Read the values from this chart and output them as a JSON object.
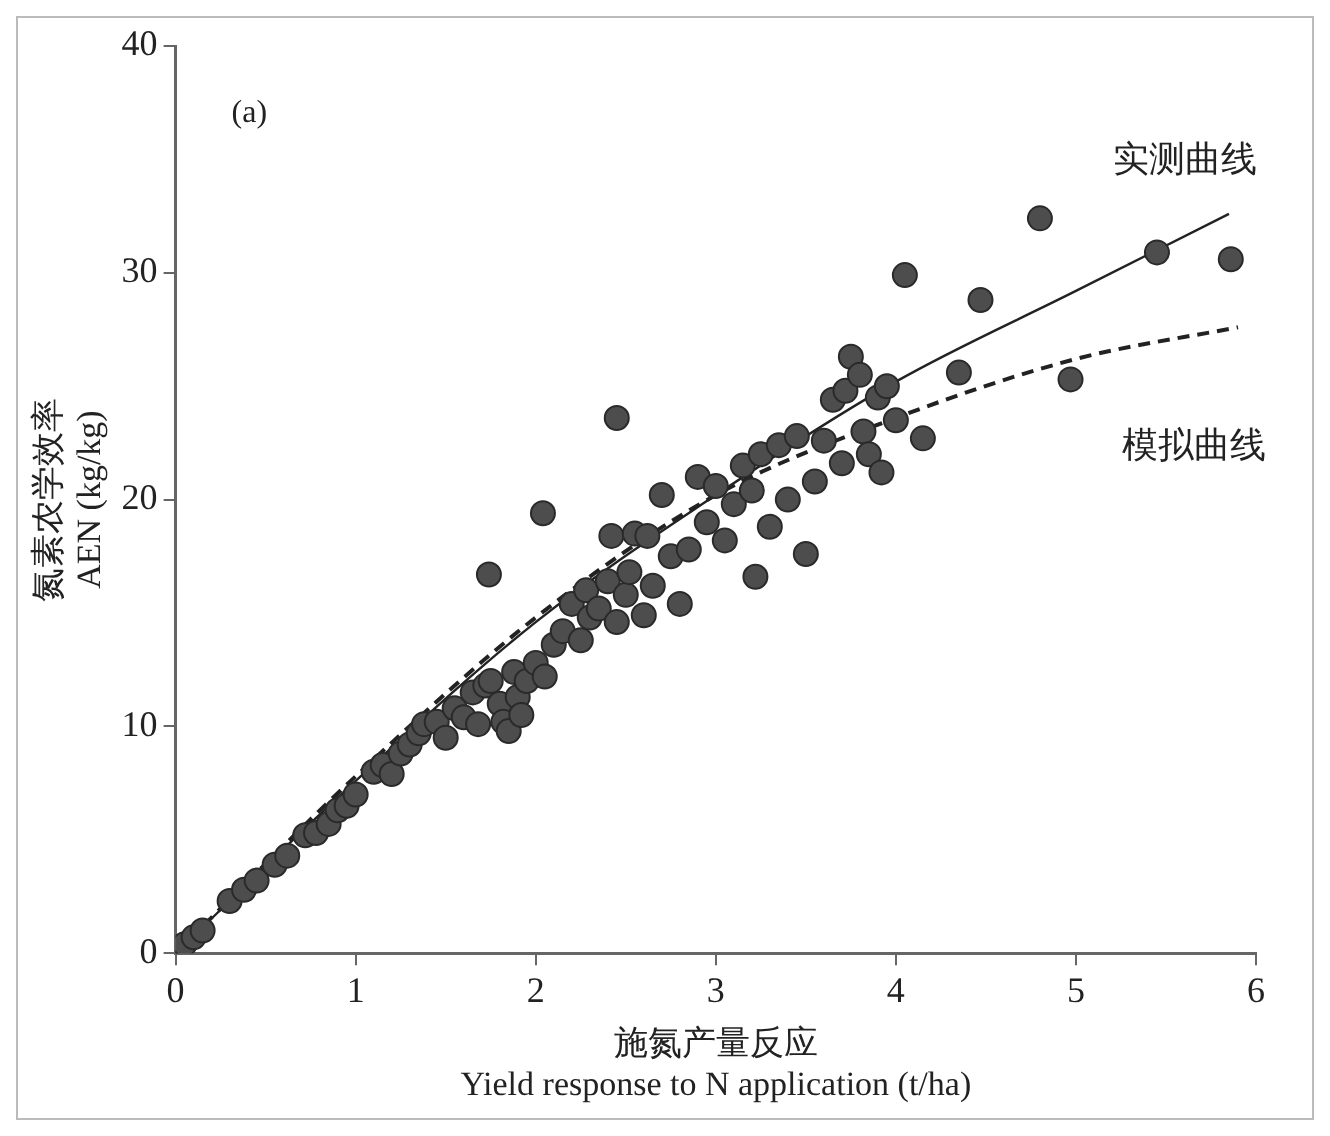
{
  "chart_data": {
    "type": "scatter",
    "xlabel": "施氮产量反应\nYield response to N application (t/ha)",
    "ylabel": "氮素农学效率\nAEN (kg/kg)",
    "xlim": [
      0,
      6
    ],
    "xticks": [
      0,
      1,
      2,
      3,
      4,
      5,
      6
    ],
    "ylim": [
      0,
      40
    ],
    "yticks": [
      0,
      10,
      20,
      30,
      40
    ],
    "grid": false,
    "legend": false,
    "marker": "circle",
    "annotations": [
      "(a)"
    ],
    "series": [
      {
        "type": "scatter",
        "color": "#4d4d4d",
        "x": [
          0.05,
          0.1,
          0.15,
          0.3,
          0.38,
          0.45,
          0.55,
          0.62,
          0.72,
          0.78,
          0.85,
          0.9,
          0.95,
          1.0,
          1.1,
          1.15,
          1.2,
          1.25,
          1.3,
          1.35,
          1.38,
          1.45,
          1.5,
          1.55,
          1.6,
          1.65,
          1.68,
          1.72,
          1.75,
          1.8,
          1.82,
          1.85,
          1.88,
          1.9,
          1.92,
          1.95,
          2.0,
          2.05,
          2.1,
          2.15,
          2.2,
          2.25,
          2.28,
          2.3,
          2.35,
          2.4,
          2.42,
          2.45,
          2.5,
          2.52,
          2.55,
          2.6,
          2.62,
          2.65,
          2.7,
          2.75,
          2.8,
          2.85,
          2.9,
          2.95,
          3.0,
          3.05,
          3.1,
          3.15,
          3.2,
          3.22,
          3.25,
          3.3,
          3.35,
          3.4,
          3.45,
          3.5,
          3.55,
          3.6,
          3.65,
          3.7,
          3.72,
          3.75,
          3.8,
          3.82,
          3.85,
          3.9,
          3.92,
          3.95,
          4.0,
          4.05,
          4.15,
          4.35,
          4.47,
          4.8,
          4.97,
          5.45,
          5.86,
          1.74,
          2.04,
          2.45
        ],
        "values": [
          0.4,
          0.7,
          1.0,
          2.3,
          2.8,
          3.2,
          3.9,
          4.3,
          5.2,
          5.3,
          5.7,
          6.3,
          6.5,
          7.0,
          8.0,
          8.3,
          7.9,
          8.8,
          9.2,
          9.7,
          10.1,
          10.2,
          9.5,
          10.8,
          10.4,
          11.5,
          10.1,
          11.8,
          12.0,
          11.0,
          10.2,
          9.8,
          12.4,
          11.3,
          10.5,
          12.0,
          12.8,
          12.2,
          13.6,
          14.2,
          15.4,
          13.8,
          16.0,
          14.8,
          15.2,
          16.4,
          18.4,
          14.6,
          15.8,
          16.8,
          18.5,
          14.9,
          18.4,
          16.2,
          20.2,
          17.5,
          15.4,
          17.8,
          21.0,
          19.0,
          20.6,
          18.2,
          19.8,
          21.5,
          20.4,
          16.6,
          22.0,
          18.8,
          22.4,
          20.0,
          22.8,
          17.6,
          20.8,
          22.6,
          24.4,
          21.6,
          24.8,
          26.3,
          25.5,
          23.0,
          22.0,
          24.5,
          21.2,
          25.0,
          23.5,
          29.9,
          22.7,
          25.6,
          28.8,
          32.4,
          25.3,
          30.9,
          30.6,
          16.7,
          19.4,
          23.6
        ]
      },
      {
        "type": "line",
        "name": "实测曲线",
        "color": "#222222",
        "line_style": "solid",
        "marker": "none",
        "x": [
          0,
          1,
          2,
          3,
          4,
          5,
          5.85
        ],
        "values": [
          0,
          7.6,
          14.6,
          20.2,
          25.2,
          29.2,
          32.6
        ]
      },
      {
        "type": "line",
        "name": "模拟曲线",
        "color": "#222222",
        "line_style": "dashed",
        "marker": "none",
        "x": [
          0,
          1,
          2,
          3,
          4,
          5,
          5.9
        ],
        "values": [
          0,
          7.8,
          14.8,
          20.2,
          23.6,
          26.2,
          27.6
        ]
      }
    ]
  }
}
